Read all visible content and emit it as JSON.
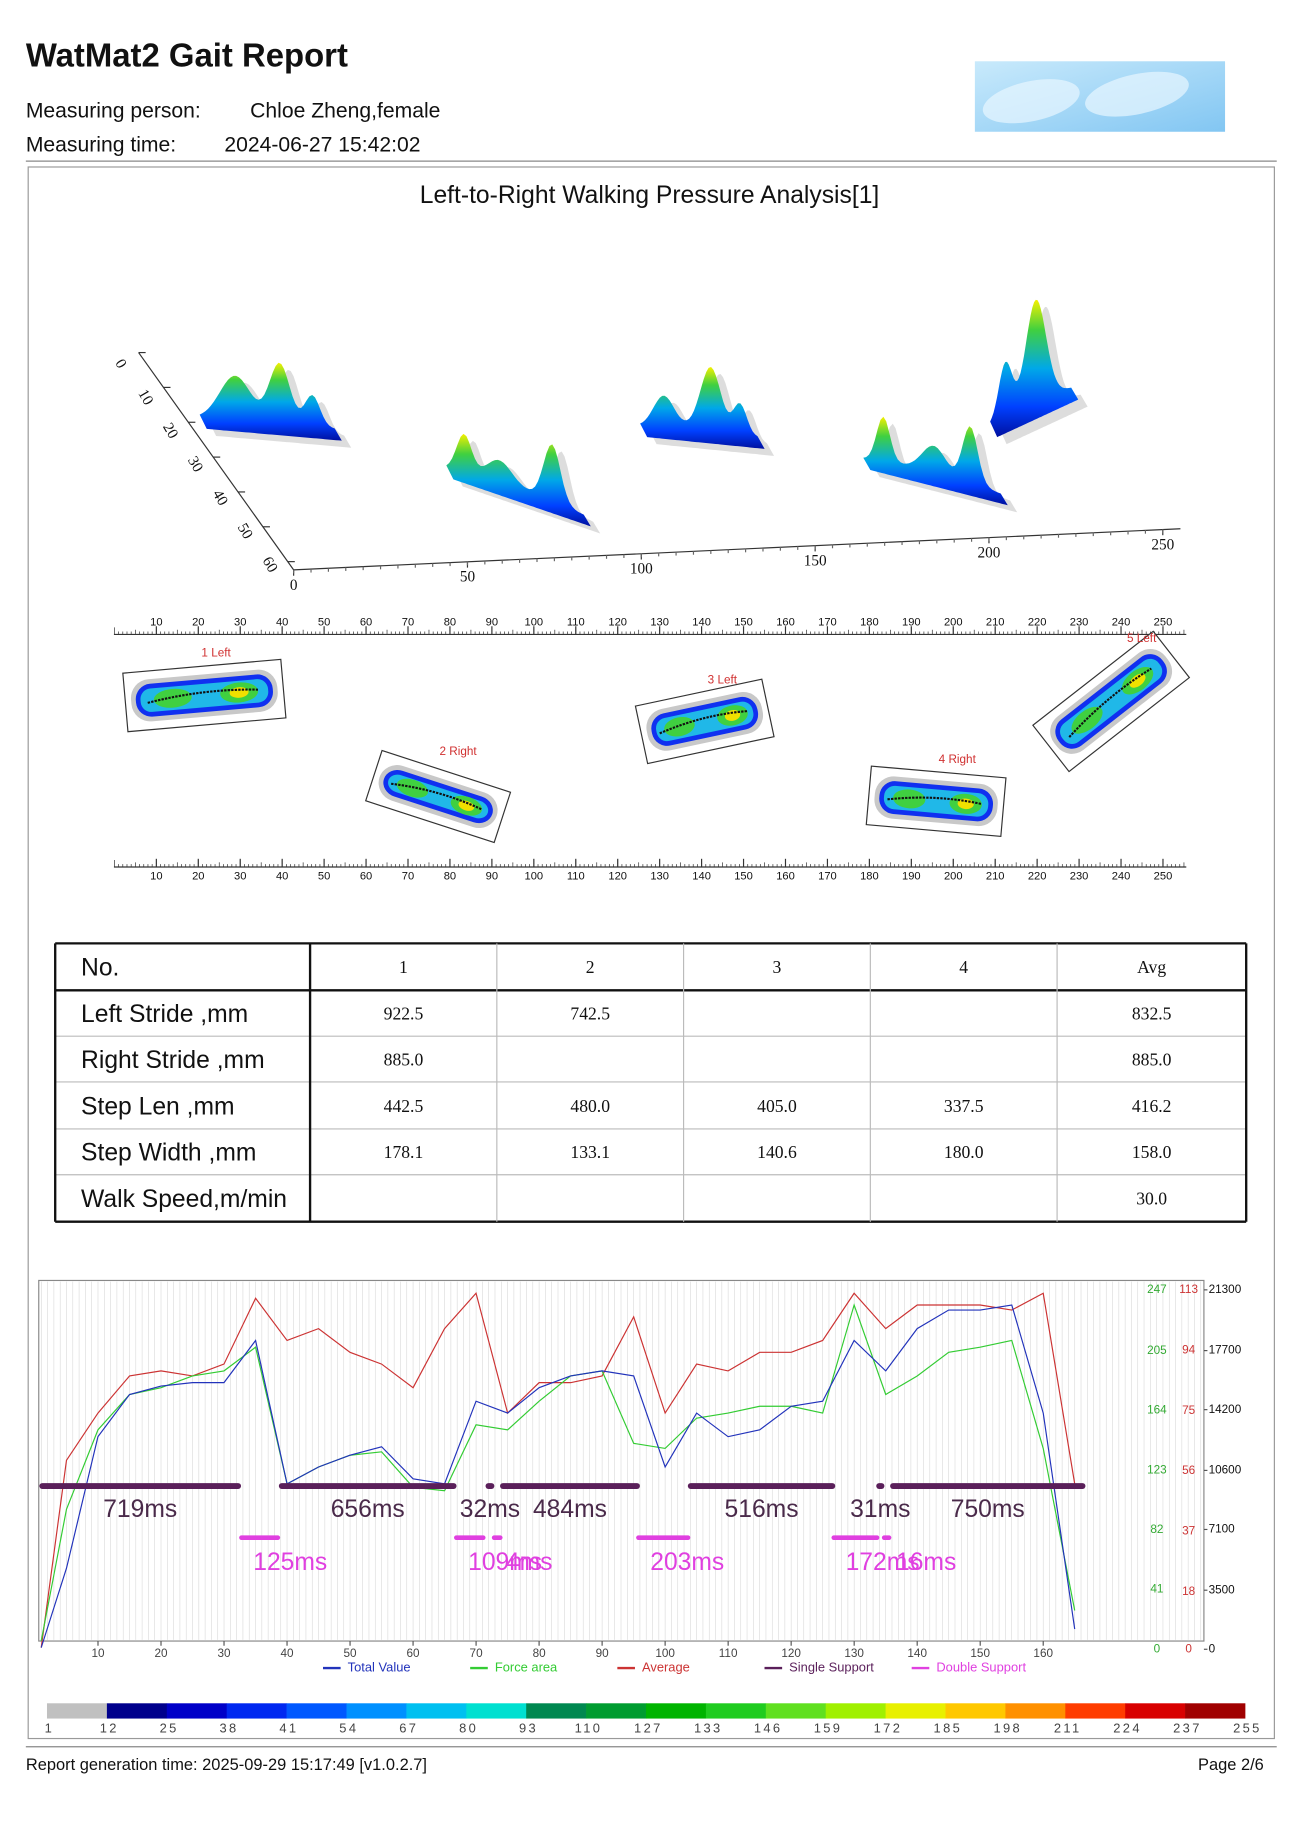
{
  "header": {
    "title": "WatMat2 Gait Report",
    "person_label": "Measuring person:",
    "person": "Chloe Zheng,female",
    "time_label": "Measuring time:",
    "time": "2024-06-27 15:42:02"
  },
  "pressure_3d": {
    "title": "Left-to-Right Walking Pressure Analysis[1]",
    "depth_ticks": [
      0,
      10,
      20,
      30,
      40,
      50,
      60
    ],
    "length_ticks": [
      0,
      50,
      100,
      150,
      200,
      250
    ]
  },
  "footprints": {
    "ruler_ticks": [
      10,
      20,
      30,
      40,
      50,
      60,
      70,
      80,
      90,
      100,
      110,
      120,
      130,
      140,
      150,
      160,
      170,
      180,
      190,
      200,
      210,
      220,
      230,
      240,
      250
    ],
    "steps": [
      "1 Left",
      "2 Right",
      "3 Left",
      "4 Right",
      "5 Left"
    ]
  },
  "table": {
    "header": [
      "No.",
      "1",
      "2",
      "3",
      "4",
      "Avg"
    ],
    "rows": [
      [
        "Left Stride ,mm",
        "922.5",
        "742.5",
        null,
        null,
        "832.5"
      ],
      [
        "Right Stride ,mm",
        "885.0",
        null,
        null,
        null,
        "885.0"
      ],
      [
        "Step Len ,mm",
        "442.5",
        "480.0",
        "405.0",
        "337.5",
        "416.2"
      ],
      [
        "Step Width ,mm",
        "178.1",
        "133.1",
        "140.6",
        "180.0",
        "158.0"
      ],
      [
        "Walk Speed,m/min",
        null,
        null,
        null,
        null,
        "30.0"
      ]
    ]
  },
  "chart_data": {
    "type": "line",
    "x": [
      1,
      5,
      10,
      15,
      20,
      25,
      30,
      35,
      40,
      45,
      50,
      55,
      60,
      65,
      70,
      75,
      80,
      85,
      90,
      95,
      100,
      105,
      110,
      115,
      120,
      125,
      130,
      135,
      140,
      145,
      150,
      155,
      160,
      165
    ],
    "series": [
      {
        "name": "Total Value",
        "color": "#2233bb",
        "values": [
          100,
          4800,
          12600,
          15100,
          15600,
          15800,
          15800,
          18300,
          9800,
          10800,
          11500,
          12000,
          10100,
          9800,
          14700,
          14000,
          15500,
          16200,
          16500,
          16200,
          10800,
          14000,
          12600,
          13000,
          14400,
          14700,
          18300,
          16500,
          19000,
          20100,
          20100,
          20400,
          14000,
          1200
        ]
      },
      {
        "name": "Force area",
        "color": "#33cc33",
        "values": [
          500,
          8300,
          13000,
          15100,
          15500,
          16200,
          16500,
          17900,
          9800,
          10800,
          11500,
          11700,
          9600,
          9400,
          13300,
          13000,
          14700,
          16200,
          16500,
          12200,
          11900,
          13700,
          14000,
          14400,
          14400,
          14000,
          20400,
          15100,
          16200,
          17600,
          17900,
          18300,
          11900,
          2300
        ]
      },
      {
        "name": "Average",
        "color": "#cc3333",
        "values": [
          100,
          11200,
          14000,
          16200,
          16500,
          16200,
          16900,
          20800,
          18300,
          19000,
          17600,
          16900,
          15500,
          19000,
          21100,
          14000,
          15800,
          15800,
          16200,
          19700,
          14000,
          16900,
          16500,
          17600,
          17600,
          18300,
          21100,
          19000,
          20400,
          20400,
          20400,
          20100,
          21100,
          9800
        ]
      }
    ],
    "single_support": {
      "name": "Single Support",
      "color": "#5a1f5a",
      "segments": [
        {
          "start": 0.7,
          "end": 32.7,
          "label": "719ms"
        },
        {
          "start": 38.7,
          "end": 66.9,
          "label": "656ms"
        },
        {
          "start": 71.5,
          "end": 72.9,
          "label": "32ms"
        },
        {
          "start": 73.8,
          "end": 96.0,
          "label": "484ms"
        },
        {
          "start": 103.6,
          "end": 127.0,
          "label": "516ms"
        },
        {
          "start": 133.5,
          "end": 134.8,
          "label": "31ms"
        },
        {
          "start": 135.7,
          "end": 166.7,
          "label": "750ms"
        }
      ]
    },
    "double_support": {
      "name": "Double Support",
      "color": "#e040e0",
      "segments": [
        {
          "start": 32.4,
          "end": 38.9,
          "label": "125ms"
        },
        {
          "start": 66.5,
          "end": 71.5,
          "label": "109ms"
        },
        {
          "start": 72.5,
          "end": 74.2,
          "label": "4ms"
        },
        {
          "start": 95.4,
          "end": 104.0,
          "label": "203ms"
        },
        {
          "start": 126.4,
          "end": 134.0,
          "label": "172ms"
        },
        {
          "start": 134.4,
          "end": 135.9,
          "label": "16ms"
        }
      ]
    },
    "xlim": [
      0.6,
      185.5
    ],
    "xticks": [
      10,
      20,
      30,
      40,
      50,
      60,
      70,
      80,
      90,
      100,
      110,
      120,
      130,
      140,
      150,
      160
    ],
    "ylim": [
      0,
      21300
    ],
    "yticks": [
      0,
      3500,
      7100,
      10600,
      14200,
      17700,
      21300
    ],
    "y2lim": [
      0,
      247
    ],
    "y2ticks": [
      0,
      41,
      82,
      123,
      164,
      205,
      247
    ],
    "y2color": "#33aa33",
    "y3lim": [
      0,
      113
    ],
    "y3ticks": [
      0,
      18,
      37,
      56,
      75,
      94,
      113
    ],
    "y3color": "#cc3333",
    "grid": true
  },
  "colorbar": {
    "colors": [
      "#c0c0c0",
      "#00008c",
      "#0000c8",
      "#0028f0",
      "#0058ff",
      "#0090ff",
      "#00c0f0",
      "#00e0d0",
      "#008850",
      "#009c30",
      "#00b400",
      "#20cc20",
      "#60e020",
      "#a0f000",
      "#e8f000",
      "#ffc800",
      "#ff9000",
      "#ff3c00",
      "#d80000",
      "#a00000"
    ],
    "ticks": [
      1,
      12,
      25,
      38,
      41,
      54,
      67,
      80,
      93,
      110,
      127,
      133,
      146,
      159,
      172,
      185,
      198,
      211,
      224,
      237,
      255
    ]
  },
  "footer": {
    "generated": "Report generation time: 2025-09-29 15:17:49 [v1.0.2.7]",
    "page": "Page 2/6"
  }
}
